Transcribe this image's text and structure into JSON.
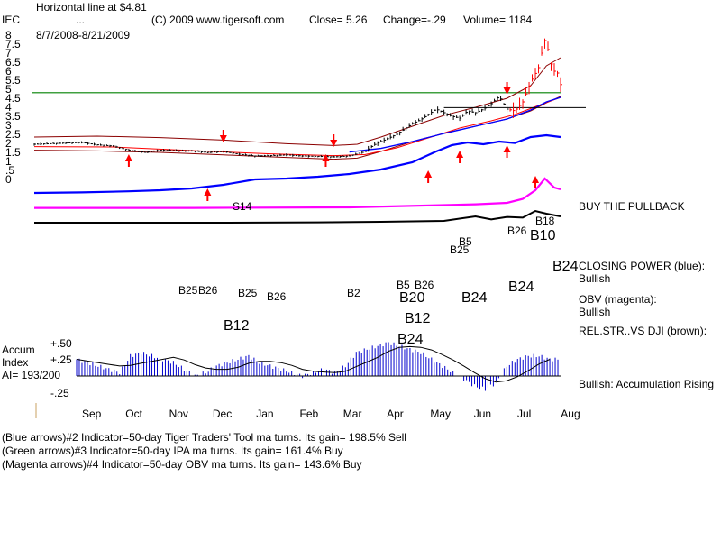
{
  "header": {
    "line1": "Horizontal line at $4.81",
    "line2": "...",
    "copyright": "(C) 2009 www.tigersoft.com",
    "close": "Close=  5.26",
    "change": "Change=-.29",
    "volume": "Volume= 1184",
    "symbol": "IEC",
    "date_range": "8/7/2008-8/21/2009"
  },
  "right_panel": {
    "buy_pullback": "BUY THE PULLBACK",
    "closing_power": "CLOSING POWER (blue):",
    "closing_power_status": "Bullish",
    "obv": "OBV (magenta):",
    "obv_status": "Bullish",
    "relstr": "REL.STR..VS DJI (brown):",
    "accum": "Bullish: Accumulation Rising"
  },
  "accum_panel": {
    "label1": "Accum",
    "label2": "Index",
    "ai": "AI= 193/200",
    "p50": "+.50",
    "p25": "+.25",
    "m25": "-.25"
  },
  "footer": {
    "line1": "(Blue arrows)#2 Indicator=50-day Tiger Traders' Tool ma turns. Its gain= 198.5% Sell",
    "line2": "(Green arrows)#3 Indicator=50-day IPA ma turns. Its gain= 161.4% Buy",
    "line3": "(Magenta arrows)#4 Indicator=50-day OBV ma turns. Its gain= 143.6% Buy"
  },
  "colors": {
    "price_bars": "#000000",
    "band": "#8b0000",
    "ma_red": "#ff0000",
    "blue_ma": "#0000ff",
    "closing_power": "#0000ff",
    "obv": "#ff00ff",
    "relstr": "#000000",
    "accum_bars": "#0000cc",
    "support_line": "#008000",
    "arrow_red": "#ff0000"
  },
  "chart_data": {
    "type": "line",
    "y_ticks": [
      "8",
      "7.5",
      "7",
      "6.5",
      "6",
      "5.5",
      "5",
      "4.5",
      "4",
      "3.5",
      "3",
      "2.5",
      "2",
      "1.5",
      "1",
      ".5",
      "0"
    ],
    "x_labels": [
      "Sep",
      "Oct",
      "Nov",
      "Dec",
      "Jan",
      "Feb",
      "Mar",
      "Apr",
      "May",
      "Jun",
      "Jul",
      "Aug"
    ],
    "horizontal_line": 4.81,
    "close": 5.26,
    "price_series": [
      [
        0,
        1.95
      ],
      [
        10,
        1.98
      ],
      [
        20,
        2.02
      ],
      [
        30,
        2.05
      ],
      [
        40,
        1.92
      ],
      [
        50,
        1.85
      ],
      [
        60,
        1.62
      ],
      [
        70,
        1.5
      ],
      [
        80,
        1.62
      ],
      [
        90,
        1.6
      ],
      [
        100,
        1.58
      ],
      [
        110,
        1.5
      ],
      [
        120,
        1.55
      ],
      [
        130,
        1.4
      ],
      [
        140,
        1.3
      ],
      [
        150,
        1.32
      ],
      [
        160,
        1.36
      ],
      [
        170,
        1.3
      ],
      [
        180,
        1.28
      ],
      [
        190,
        1.25
      ],
      [
        200,
        1.3
      ],
      [
        210,
        1.55
      ],
      [
        215,
        1.9
      ],
      [
        220,
        2.1
      ],
      [
        225,
        2.3
      ],
      [
        230,
        2.5
      ],
      [
        235,
        2.8
      ],
      [
        240,
        3.1
      ],
      [
        245,
        3.3
      ],
      [
        250,
        3.6
      ],
      [
        255,
        3.9
      ],
      [
        260,
        3.7
      ],
      [
        265,
        3.5
      ],
      [
        270,
        3.4
      ],
      [
        275,
        3.8
      ],
      [
        280,
        3.7
      ],
      [
        285,
        3.9
      ],
      [
        290,
        4.2
      ],
      [
        295,
        4.6
      ],
      [
        300,
        3.9
      ],
      [
        305,
        3.8
      ],
      [
        310,
        4.3
      ],
      [
        315,
        5.4
      ],
      [
        320,
        6.2
      ],
      [
        322,
        7.0
      ],
      [
        324,
        7.7
      ],
      [
        326,
        7.2
      ],
      [
        328,
        6.4
      ],
      [
        330,
        6.0
      ],
      [
        332,
        5.9
      ],
      [
        334,
        5.26
      ]
    ],
    "upper_band": [
      [
        0,
        2.35
      ],
      [
        40,
        2.4
      ],
      [
        80,
        2.32
      ],
      [
        120,
        2.18
      ],
      [
        160,
        1.98
      ],
      [
        190,
        1.88
      ],
      [
        205,
        1.95
      ],
      [
        220,
        2.35
      ],
      [
        240,
        2.95
      ],
      [
        260,
        3.55
      ],
      [
        280,
        4.0
      ],
      [
        300,
        4.5
      ],
      [
        315,
        5.2
      ],
      [
        325,
        6.3
      ],
      [
        334,
        6.75
      ]
    ],
    "lower_band": [
      [
        0,
        1.62
      ],
      [
        40,
        1.58
      ],
      [
        80,
        1.5
      ],
      [
        120,
        1.36
      ],
      [
        160,
        1.22
      ],
      [
        190,
        1.12
      ],
      [
        205,
        1.18
      ],
      [
        220,
        1.55
      ],
      [
        240,
        2.1
      ],
      [
        260,
        2.55
      ],
      [
        280,
        2.95
      ],
      [
        300,
        3.35
      ],
      [
        315,
        3.8
      ],
      [
        325,
        4.25
      ],
      [
        334,
        4.6
      ]
    ],
    "red_ma": [
      [
        0,
        1.82
      ],
      [
        50,
        1.8
      ],
      [
        100,
        1.6
      ],
      [
        150,
        1.42
      ],
      [
        190,
        1.32
      ],
      [
        210,
        1.38
      ],
      [
        230,
        1.75
      ],
      [
        250,
        2.3
      ],
      [
        270,
        2.85
      ],
      [
        290,
        3.25
      ],
      [
        305,
        3.6
      ],
      [
        320,
        4.1
      ],
      [
        334,
        4.55
      ]
    ],
    "blue_ma": [
      [
        200,
        1.52
      ],
      [
        220,
        1.72
      ],
      [
        240,
        2.1
      ],
      [
        260,
        2.55
      ],
      [
        280,
        2.95
      ],
      [
        300,
        3.35
      ],
      [
        315,
        3.85
      ],
      [
        325,
        4.3
      ],
      [
        334,
        4.55
      ]
    ],
    "pullback_line": [
      [
        260,
        3.98
      ],
      [
        350,
        3.98
      ]
    ],
    "closing_power": [
      [
        0,
        -0.75
      ],
      [
        30,
        -0.72
      ],
      [
        60,
        -0.66
      ],
      [
        80,
        -0.6
      ],
      [
        100,
        -0.5
      ],
      [
        120,
        -0.3
      ],
      [
        140,
        0.0
      ],
      [
        160,
        0.05
      ],
      [
        180,
        0.15
      ],
      [
        200,
        0.3
      ],
      [
        220,
        0.55
      ],
      [
        240,
        0.95
      ],
      [
        255,
        1.55
      ],
      [
        265,
        1.9
      ],
      [
        275,
        2.05
      ],
      [
        285,
        1.95
      ],
      [
        295,
        2.1
      ],
      [
        305,
        2.02
      ],
      [
        315,
        2.35
      ],
      [
        325,
        2.45
      ],
      [
        334,
        2.35
      ]
    ],
    "obv": [
      [
        0,
        -1.58
      ],
      [
        100,
        -1.58
      ],
      [
        200,
        -1.55
      ],
      [
        280,
        -1.38
      ],
      [
        300,
        -1.3
      ],
      [
        310,
        -1.08
      ],
      [
        318,
        -0.6
      ],
      [
        324,
        0.05
      ],
      [
        330,
        -0.45
      ],
      [
        334,
        -0.55
      ]
    ],
    "relstr": [
      [
        0,
        -2.4
      ],
      [
        60,
        -2.4
      ],
      [
        120,
        -2.4
      ],
      [
        180,
        -2.38
      ],
      [
        220,
        -2.35
      ],
      [
        260,
        -2.3
      ],
      [
        280,
        -2.05
      ],
      [
        290,
        -2.22
      ],
      [
        300,
        -2.08
      ],
      [
        310,
        -2.12
      ],
      [
        318,
        -1.75
      ],
      [
        325,
        -1.9
      ],
      [
        334,
        -2.05
      ]
    ],
    "accum_index": [
      0.25,
      0.2,
      0.15,
      0.1,
      0.05,
      0.3,
      0.35,
      0.3,
      0.25,
      0.2,
      0.1,
      0.0,
      0.05,
      0.15,
      0.2,
      0.25,
      0.3,
      0.2,
      0.15,
      0.1,
      0.05,
      0.0,
      0.05,
      0.1,
      0.05,
      0.15,
      0.35,
      0.4,
      0.45,
      0.5,
      0.45,
      0.4,
      0.35,
      0.25,
      0.15,
      0.05,
      -0.05,
      -0.15,
      -0.2,
      -0.1,
      0.15,
      0.25,
      0.3,
      0.3,
      0.25
    ],
    "signals": [
      {
        "label": "S14",
        "size": "small"
      },
      {
        "label": "B25",
        "size": "small"
      },
      {
        "label": "B26",
        "size": "small"
      },
      {
        "label": "B25",
        "size": "small"
      },
      {
        "label": "B26",
        "size": "small"
      },
      {
        "label": "B25",
        "size": "small"
      },
      {
        "label": "B5",
        "size": "small"
      },
      {
        "label": "B26",
        "size": "small"
      },
      {
        "label": "B18",
        "size": "small"
      },
      {
        "label": "B10",
        "size": "large"
      },
      {
        "label": "B24",
        "size": "large"
      },
      {
        "label": "B24",
        "size": "large"
      },
      {
        "label": "B24",
        "size": "large"
      },
      {
        "label": "B20",
        "size": "large"
      },
      {
        "label": "B12",
        "size": "large"
      },
      {
        "label": "B12",
        "size": "large"
      },
      {
        "label": "B24",
        "size": "large"
      },
      {
        "label": "B2",
        "size": "small"
      },
      {
        "label": "B5",
        "size": "small"
      },
      {
        "label": "B26",
        "size": "small"
      }
    ]
  }
}
